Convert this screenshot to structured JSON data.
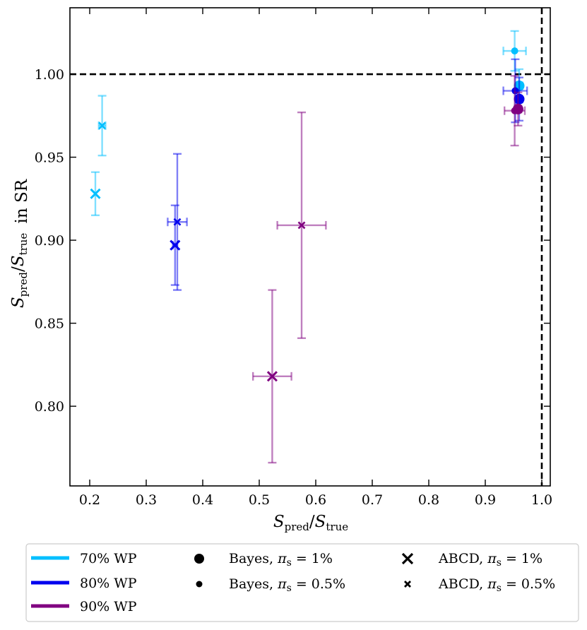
{
  "chart_data": {
    "type": "scatter",
    "xlabel": "S_pred/S_true",
    "ylabel": "S_pred/S_true in SR",
    "xlim": [
      0.165,
      1.015
    ],
    "ylim": [
      0.752,
      1.04
    ],
    "xticks": [
      0.2,
      0.3,
      0.4,
      0.5,
      0.6,
      0.7,
      0.8,
      0.9,
      1.0
    ],
    "xtick_labels": [
      "0.2",
      "0.3",
      "0.4",
      "0.5",
      "0.6",
      "0.7",
      "0.8",
      "0.9",
      "1.0"
    ],
    "yticks": [
      0.8,
      0.85,
      0.9,
      0.95,
      1.0
    ],
    "ytick_labels": [
      "0.80",
      "0.85",
      "0.90",
      "0.95",
      "1.00"
    ],
    "reference_lines": {
      "y": 1.0,
      "x": 1.0,
      "style": "dashed"
    },
    "grid": false,
    "legend": {
      "placement": "bottom",
      "working_points": [
        {
          "label": "70% WP",
          "color": "#00bfff"
        },
        {
          "label": "80% WP",
          "color": "#0000ee"
        },
        {
          "label": "90% WP",
          "color": "#800080"
        }
      ],
      "methods": [
        {
          "label": "Bayes, π_s = 1%",
          "marker": "circle-large"
        },
        {
          "label": "Bayes, π_s = 0.5%",
          "marker": "circle-small"
        },
        {
          "label": "ABCD, π_s = 1%",
          "marker": "x-large"
        },
        {
          "label": "ABCD, π_s = 0.5%",
          "marker": "x-small"
        }
      ]
    },
    "points": [
      {
        "wp": "70% WP",
        "color": "#00bfff",
        "method": "ABCD",
        "pi_s": "1%",
        "x": 0.21,
        "y": 0.928,
        "xerr": 0.0,
        "yerr": 0.013
      },
      {
        "wp": "70% WP",
        "color": "#00bfff",
        "method": "ABCD",
        "pi_s": "0.5%",
        "x": 0.222,
        "y": 0.969,
        "xerr": 0.006,
        "yerr": 0.018
      },
      {
        "wp": "80% WP",
        "color": "#0000ee",
        "method": "ABCD",
        "pi_s": "1%",
        "x": 0.351,
        "y": 0.897,
        "xerr": 0.004,
        "yerr": 0.024
      },
      {
        "wp": "80% WP",
        "color": "#0000ee",
        "method": "ABCD",
        "pi_s": "0.5%",
        "x": 0.355,
        "y": 0.911,
        "xerr": 0.017,
        "yerr": 0.041
      },
      {
        "wp": "90% WP",
        "color": "#800080",
        "method": "ABCD",
        "pi_s": "1%",
        "x": 0.523,
        "y": 0.818,
        "xerr": 0.034,
        "yerr": 0.052
      },
      {
        "wp": "90% WP",
        "color": "#800080",
        "method": "ABCD",
        "pi_s": "0.5%",
        "x": 0.575,
        "y": 0.909,
        "xerr": 0.043,
        "yerr": 0.068
      },
      {
        "wp": "70% WP",
        "color": "#00bfff",
        "method": "Bayes",
        "pi_s": "0.5%",
        "x": 0.952,
        "y": 1.014,
        "xerr": 0.02,
        "yerr": 0.012
      },
      {
        "wp": "70% WP",
        "color": "#00bfff",
        "method": "Bayes",
        "pi_s": "1%",
        "x": 0.96,
        "y": 0.993,
        "xerr": 0.006,
        "yerr": 0.01
      },
      {
        "wp": "80% WP",
        "color": "#0000ee",
        "method": "Bayes",
        "pi_s": "0.5%",
        "x": 0.953,
        "y": 0.99,
        "xerr": 0.021,
        "yerr": 0.019
      },
      {
        "wp": "80% WP",
        "color": "#0000ee",
        "method": "Bayes",
        "pi_s": "1%",
        "x": 0.96,
        "y": 0.985,
        "xerr": 0.005,
        "yerr": 0.013
      },
      {
        "wp": "90% WP",
        "color": "#800080",
        "method": "Bayes",
        "pi_s": "0.5%",
        "x": 0.952,
        "y": 0.978,
        "xerr": 0.018,
        "yerr": 0.021
      },
      {
        "wp": "90% WP",
        "color": "#800080",
        "method": "Bayes",
        "pi_s": "1%",
        "x": 0.958,
        "y": 0.979,
        "xerr": 0.006,
        "yerr": 0.01
      }
    ]
  }
}
